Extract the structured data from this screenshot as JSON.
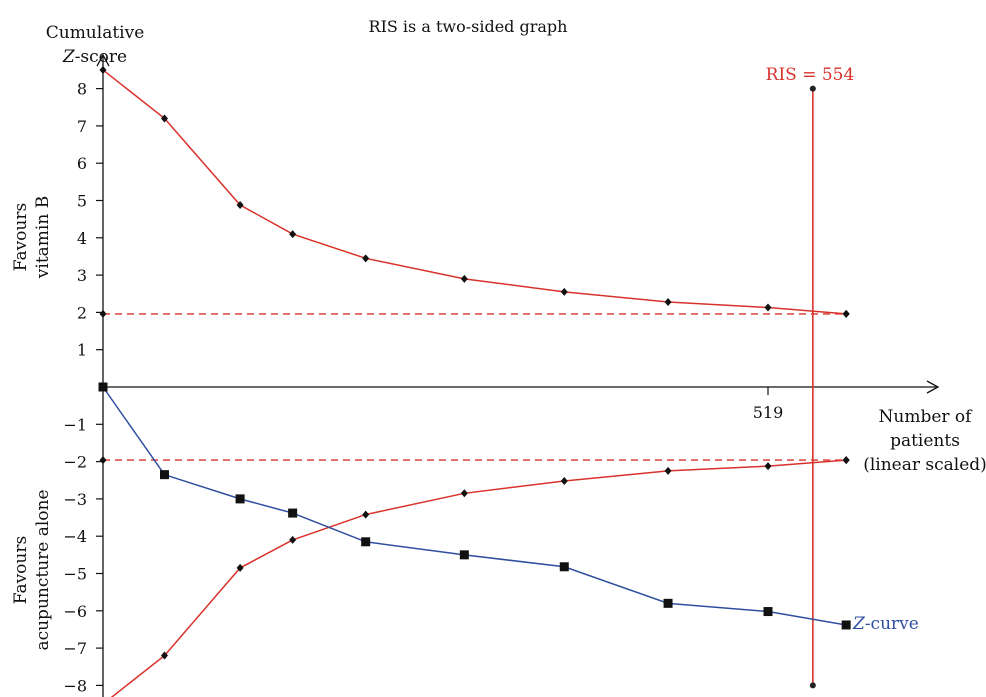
{
  "chart_data": {
    "type": "line",
    "title": "RIS is a two-sided graph",
    "ylabel_line1": "Cumulative",
    "ylabel_line2_italic": "Z",
    "ylabel_line2_rest": "-score",
    "upper_label_line1": "Favours",
    "upper_label_line2": "vitamin B",
    "lower_label_line1": "Favours",
    "lower_label_line2": "acupuncture alone",
    "xlabel_lines": [
      "Number of",
      "patients",
      "(linear scaled)"
    ],
    "x_tick_label": "519",
    "ris_label": "RIS = 554",
    "zcurve_label_italic": "Z",
    "zcurve_label_rest": "-curve",
    "y_ticks": [
      "8",
      "7",
      "6",
      "5",
      "4",
      "3",
      "2",
      "1",
      "−1",
      "−2",
      "−3",
      "−4",
      "−5",
      "−6",
      "−7",
      "−8"
    ],
    "y_tick_values": [
      8,
      7,
      6,
      5,
      4,
      3,
      2,
      1,
      -1,
      -2,
      -3,
      -4,
      -5,
      -6,
      -7,
      -8
    ],
    "x_tick_value": 519,
    "ylim": [
      -8,
      8
    ],
    "xlim": [
      0,
      554
    ],
    "ris_value": 554,
    "conventional_boundary": 1.96,
    "series": [
      {
        "kind": "upper_boundary",
        "color": "#d9322b",
        "x": [
          0,
          48,
          107,
          148,
          205,
          282,
          360,
          441,
          519,
          580
        ],
        "y": [
          8.5,
          7.2,
          4.88,
          4.1,
          3.45,
          2.9,
          2.55,
          2.28,
          2.13,
          1.96
        ]
      },
      {
        "kind": "lower_boundary",
        "color": "#d9322b",
        "x": [
          0,
          48,
          107,
          148,
          205,
          282,
          360,
          441,
          519,
          580
        ],
        "y": [
          -8.5,
          -7.2,
          -4.85,
          -4.1,
          -3.42,
          -2.85,
          -2.52,
          -2.25,
          -2.12,
          -1.96
        ]
      },
      {
        "kind": "z_curve",
        "color": "#2f4ea0",
        "x": [
          0,
          48,
          107,
          148,
          205,
          282,
          360,
          441,
          519,
          580
        ],
        "y": [
          0,
          -2.35,
          -3.0,
          -3.38,
          -4.15,
          -4.5,
          -4.82,
          -5.8,
          -6.02,
          -6.38
        ]
      }
    ],
    "conventional_points": {
      "x": [
        0,
        580
      ],
      "y_upper": 1.96,
      "y_lower": -1.96
    },
    "colors": {
      "boundary": "#d9322b",
      "zcurve": "#2f4ea0",
      "axis": "#111111"
    }
  }
}
